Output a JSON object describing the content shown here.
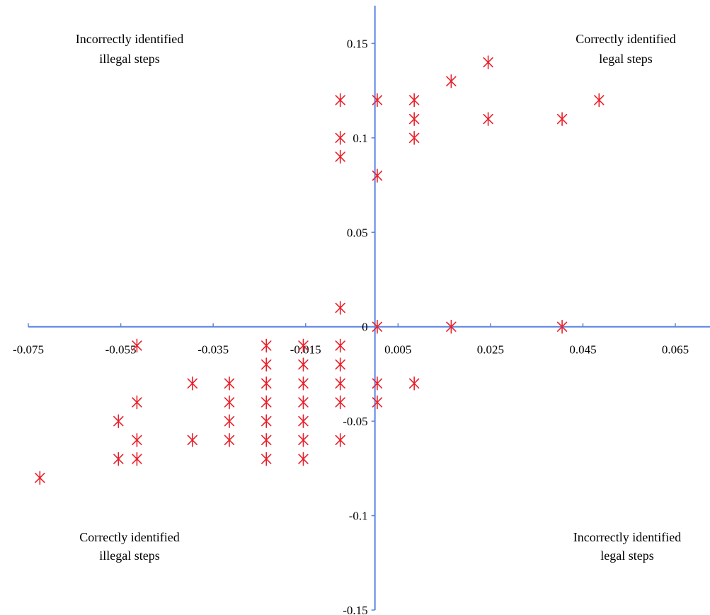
{
  "colors": {
    "axis": "#5b84e6",
    "marker": "#e8202a"
  },
  "chart_data": {
    "type": "scatter",
    "title": "",
    "xlabel": "",
    "ylabel": "",
    "xlim": [
      -0.075,
      0.0725
    ],
    "ylim": [
      -0.15,
      0.17
    ],
    "x_ticks": [
      -0.075,
      -0.055,
      -0.035,
      -0.015,
      0.005,
      0.025,
      0.045,
      0.065
    ],
    "x_tick_labels": [
      "-0.075",
      "-0.055",
      "-0.035",
      "-0.015",
      "0.005",
      "0.025",
      "0.045",
      "0.065"
    ],
    "y_ticks": [
      0.15,
      0.1,
      0.05,
      0,
      -0.05,
      -0.1,
      -0.15
    ],
    "y_tick_labels": [
      "0.15",
      "0.1",
      "0.05",
      "0",
      "-0.05",
      "-0.1",
      "-0.15"
    ],
    "marker": "asterisk",
    "grid": false,
    "annotations": [
      {
        "line1": "Incorrectly identified",
        "line2": "illegal steps"
      },
      {
        "line1": "Correctly identified",
        "line2": "legal steps"
      },
      {
        "line1": "Correctly identified",
        "line2": "illegal steps"
      },
      {
        "line1": "Incorrectly identified",
        "line2": "legal steps"
      }
    ],
    "points": [
      {
        "x": -0.0725,
        "y": -0.08
      },
      {
        "x": -0.0555,
        "y": -0.05
      },
      {
        "x": -0.0555,
        "y": -0.07
      },
      {
        "x": -0.0515,
        "y": -0.01
      },
      {
        "x": -0.0515,
        "y": -0.04
      },
      {
        "x": -0.0515,
        "y": -0.06
      },
      {
        "x": -0.0515,
        "y": -0.07
      },
      {
        "x": -0.0395,
        "y": -0.03
      },
      {
        "x": -0.0395,
        "y": -0.06
      },
      {
        "x": -0.0315,
        "y": -0.03
      },
      {
        "x": -0.0315,
        "y": -0.04
      },
      {
        "x": -0.0315,
        "y": -0.05
      },
      {
        "x": -0.0315,
        "y": -0.06
      },
      {
        "x": -0.0235,
        "y": -0.01
      },
      {
        "x": -0.0235,
        "y": -0.02
      },
      {
        "x": -0.0235,
        "y": -0.03
      },
      {
        "x": -0.0235,
        "y": -0.04
      },
      {
        "x": -0.0235,
        "y": -0.05
      },
      {
        "x": -0.0235,
        "y": -0.06
      },
      {
        "x": -0.0235,
        "y": -0.07
      },
      {
        "x": -0.0155,
        "y": -0.01
      },
      {
        "x": -0.0155,
        "y": -0.02
      },
      {
        "x": -0.0155,
        "y": -0.03
      },
      {
        "x": -0.0155,
        "y": -0.04
      },
      {
        "x": -0.0155,
        "y": -0.05
      },
      {
        "x": -0.0155,
        "y": -0.06
      },
      {
        "x": -0.0155,
        "y": -0.07
      },
      {
        "x": -0.0075,
        "y": 0.12
      },
      {
        "x": -0.0075,
        "y": 0.1
      },
      {
        "x": -0.0075,
        "y": 0.09
      },
      {
        "x": -0.0075,
        "y": 0.01
      },
      {
        "x": -0.0075,
        "y": -0.01
      },
      {
        "x": -0.0075,
        "y": -0.02
      },
      {
        "x": -0.0075,
        "y": -0.03
      },
      {
        "x": -0.0075,
        "y": -0.04
      },
      {
        "x": -0.0075,
        "y": -0.06
      },
      {
        "x": 0.0005,
        "y": 0.12
      },
      {
        "x": 0.0005,
        "y": 0.08
      },
      {
        "x": 0.0005,
        "y": 0
      },
      {
        "x": 0.0005,
        "y": -0.03
      },
      {
        "x": 0.0005,
        "y": -0.04
      },
      {
        "x": 0.0085,
        "y": 0.12
      },
      {
        "x": 0.0085,
        "y": 0.11
      },
      {
        "x": 0.0085,
        "y": 0.1
      },
      {
        "x": 0.0085,
        "y": -0.03
      },
      {
        "x": 0.0165,
        "y": 0.13
      },
      {
        "x": 0.0165,
        "y": 0
      },
      {
        "x": 0.0245,
        "y": 0.14
      },
      {
        "x": 0.0245,
        "y": 0.11
      },
      {
        "x": 0.0405,
        "y": 0.11
      },
      {
        "x": 0.0405,
        "y": 0
      },
      {
        "x": 0.0485,
        "y": 0.12
      }
    ]
  }
}
